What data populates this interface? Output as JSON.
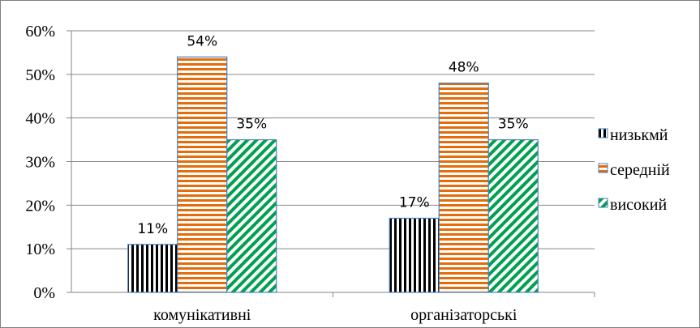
{
  "chart_data": {
    "type": "bar",
    "categories": [
      "комунікативні",
      "організаторські"
    ],
    "series": [
      {
        "name": "низькмй",
        "values": [
          11,
          17
        ],
        "color": "#000000",
        "pattern": "vertical-stripes"
      },
      {
        "name": "середній",
        "values": [
          54,
          48
        ],
        "color": "#e46c0a",
        "pattern": "horizontal-stripes"
      },
      {
        "name": "високий",
        "values": [
          35,
          35
        ],
        "color": "#00a050",
        "pattern": "diagonal-stripes"
      }
    ],
    "data_labels": [
      [
        "11%",
        "17%"
      ],
      [
        "54%",
        "48%"
      ],
      [
        "35%",
        "35%"
      ]
    ],
    "y_ticks": [
      "0%",
      "10%",
      "20%",
      "30%",
      "40%",
      "50%",
      "60%"
    ],
    "ylim": [
      0,
      60
    ],
    "grid": true,
    "legend_position": "right"
  }
}
